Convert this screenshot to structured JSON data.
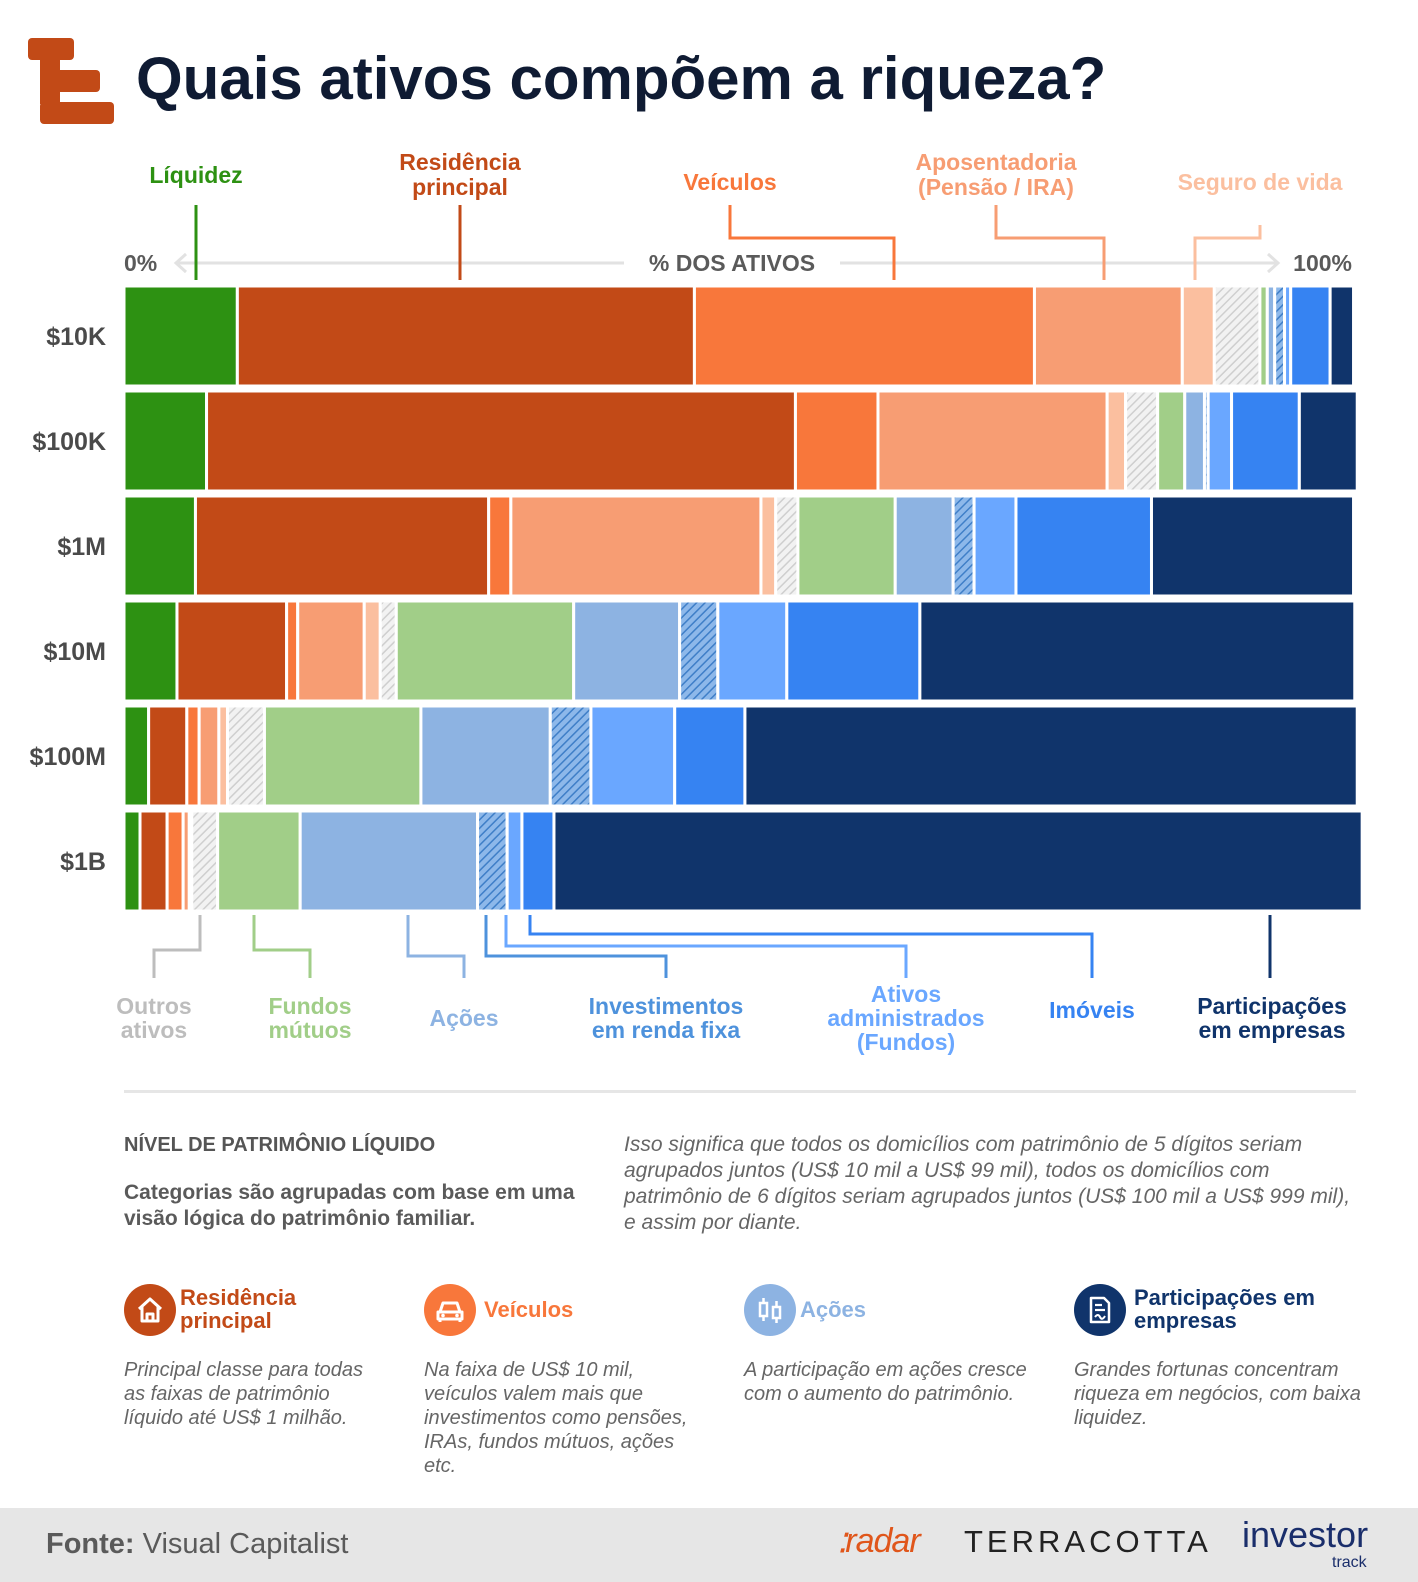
{
  "title": "Quais ativos compõem a riqueza?",
  "colors": {
    "liquidez": "#2d9112",
    "residencia": "#c24a17",
    "veiculos": "#f8773b",
    "aposentadoria": "#f79d73",
    "seguro": "#fbbf9f",
    "outros": "#d6d6d6",
    "fundos_mutuos": "#a1ce88",
    "acoes": "#8db3e2",
    "renda_fixa": "#4e92dc",
    "fundos": "#6aa7ff",
    "imoveis": "#3683f2",
    "participacoes": "#10346b"
  },
  "chart_data": {
    "type": "bar",
    "orientation": "horizontal",
    "stacked": true,
    "title": "Quais ativos compõem a riqueza?",
    "axis_left": "0%",
    "axis_center": "% DOS ATIVOS",
    "axis_right": "100%",
    "xlim": [
      0,
      100
    ],
    "categories": [
      "$10K",
      "$100K",
      "$1M",
      "$10M",
      "$100M",
      "$1B"
    ],
    "series": [
      {
        "key": "liquidez",
        "name": "Líquidez",
        "values": [
          9.2,
          6.7,
          5.8,
          4.3,
          2.0,
          1.3
        ],
        "hatched": false
      },
      {
        "key": "residencia",
        "name": "Residência principal",
        "values": [
          37.1,
          47.8,
          23.8,
          8.9,
          3.1,
          2.2
        ],
        "hatched": false
      },
      {
        "key": "veiculos",
        "name": "Veículos",
        "values": [
          27.6,
          6.7,
          1.8,
          0.9,
          1.0,
          1.3
        ],
        "hatched": false
      },
      {
        "key": "aposentadoria",
        "name": "Aposentadoria (Pensão / IRA)",
        "values": [
          12.0,
          18.6,
          20.3,
          5.4,
          1.6,
          0.5
        ],
        "hatched": false
      },
      {
        "key": "seguro",
        "name": "Seguro de vida",
        "values": [
          2.6,
          1.5,
          1.2,
          1.3,
          0.7,
          0.2
        ],
        "hatched": false
      },
      {
        "key": "outros",
        "name": "Outros ativos",
        "values": [
          3.7,
          2.6,
          1.8,
          1.3,
          3.0,
          2.1
        ],
        "hatched": true
      },
      {
        "key": "fundos_mutuos",
        "name": "Fundos mútuos",
        "values": [
          0.6,
          2.2,
          7.9,
          14.4,
          12.7,
          6.7
        ],
        "hatched": false
      },
      {
        "key": "acoes",
        "name": "Ações",
        "values": [
          0.6,
          1.6,
          4.7,
          8.6,
          10.5,
          14.4
        ],
        "hatched": false
      },
      {
        "key": "renda_fixa",
        "name": "Investimentos em renda fixa",
        "values": [
          0.8,
          0.3,
          1.7,
          3.1,
          3.3,
          2.4
        ],
        "hatched": true
      },
      {
        "key": "fundos",
        "name": "Ativos administrados (Fundos)",
        "values": [
          0.5,
          1.9,
          3.4,
          5.6,
          6.8,
          1.2
        ],
        "hatched": false
      },
      {
        "key": "imoveis",
        "name": "Imóveis",
        "values": [
          3.2,
          5.5,
          11.0,
          10.8,
          5.7,
          2.6
        ],
        "hatched": false
      },
      {
        "key": "participacoes",
        "name": "Participações em empresas",
        "values": [
          1.9,
          4.7,
          16.4,
          35.3,
          49.7,
          65.6
        ],
        "hatched": false
      }
    ],
    "legend_top": [
      {
        "key": "liquidez",
        "lines": [
          "Líquidez"
        ]
      },
      {
        "key": "residencia",
        "lines": [
          "Residência",
          "principal"
        ]
      },
      {
        "key": "veiculos",
        "lines": [
          "Veículos"
        ]
      },
      {
        "key": "aposentadoria",
        "lines": [
          "Aposentadoria",
          "(Pensão / IRA)"
        ]
      },
      {
        "key": "seguro",
        "lines": [
          "Seguro de vida"
        ]
      }
    ],
    "legend_bottom": [
      {
        "key": "outros",
        "lines": [
          "Outros",
          "ativos"
        ],
        "color": "#bdbdbd"
      },
      {
        "key": "fundos_mutuos",
        "lines": [
          "Fundos",
          "mútuos"
        ]
      },
      {
        "key": "acoes",
        "lines": [
          "Ações"
        ]
      },
      {
        "key": "renda_fixa",
        "lines": [
          "Investimentos",
          "em renda fixa"
        ]
      },
      {
        "key": "fundos",
        "lines": [
          "Ativos",
          "administrados",
          "(Fundos)"
        ]
      },
      {
        "key": "imoveis",
        "lines": [
          "Imóveis"
        ],
        "color": "#3683f2"
      },
      {
        "key": "participacoes",
        "lines": [
          "Participações",
          "em empresas"
        ]
      }
    ]
  },
  "net_worth": {
    "heading": "NÍVEL DE PATRIMÔNIO LÍQUIDO",
    "description": "Categorias são agrupadas com base em uma visão lógica do patrimônio familiar.",
    "explanation": "Isso significa que todos os domicílios com patrimônio de 5 dígitos seriam agrupados juntos (US$ 10 mil a US$ 99 mil), todos os domicílios com patrimônio de 6 dígitos seriam agrupados juntos (US$ 100 mil a US$ 999 mil), e assim por diante."
  },
  "cards": [
    {
      "icon": "house-icon",
      "color": "#c24a17",
      "title": "Residência principal",
      "text": "Principal classe para todas as faixas de patrimônio líquido até US$ 1 milhão."
    },
    {
      "icon": "car-icon",
      "color": "#f8773b",
      "title": "Veículos",
      "text": "Na faixa de US$ 10 mil, veículos valem mais que investimentos como pensões, IRAs, fundos mútuos, ações etc."
    },
    {
      "icon": "candlestick-icon",
      "color": "#8db3e2",
      "title": "Ações",
      "text": "A participação em ações cresce com o aumento do patrimônio."
    },
    {
      "icon": "document-icon",
      "color": "#10346b",
      "title": "Participações em empresas",
      "text": "Grandes fortunas concentram riqueza em negócios, com baixa liquidez."
    }
  ],
  "footer": {
    "source_label": "Fonte:",
    "source_value": "Visual Capitalist",
    "brand_radar": "radar",
    "brand_terracotta": "TERRACOTTA",
    "brand_investor": "investor",
    "brand_track": "track"
  }
}
